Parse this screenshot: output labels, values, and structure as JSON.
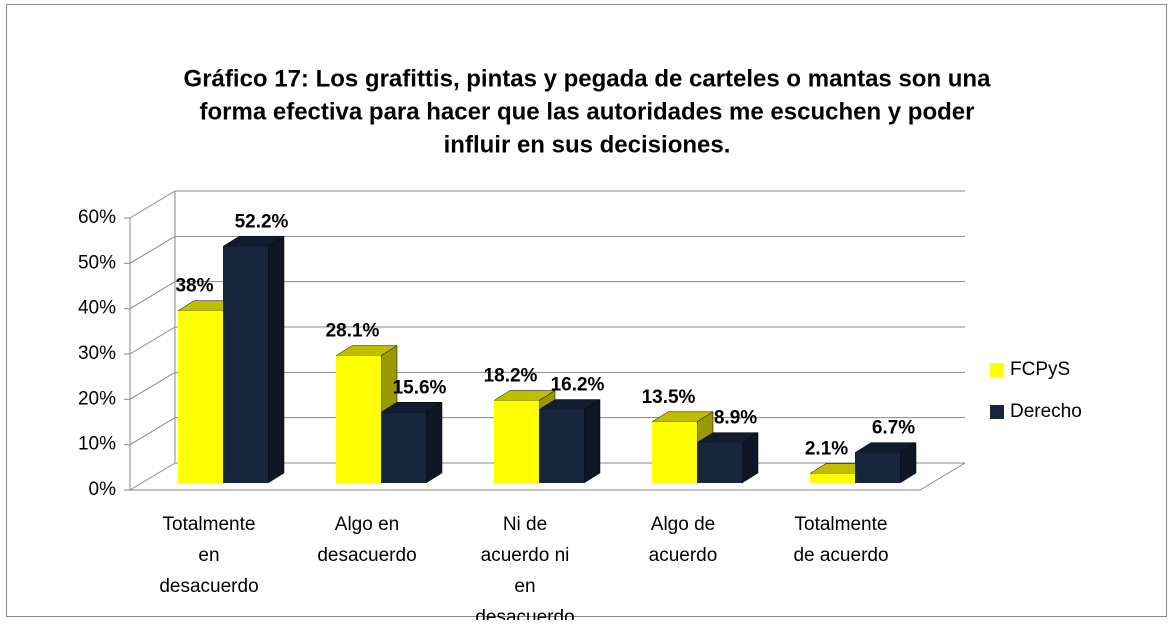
{
  "chart_data": {
    "type": "bar3d",
    "title": [
      "Gráfico 17: Los grafittis, pintas y pegada de carteles o mantas son una",
      "forma efectiva para hacer que las autoridades me escuchen y poder",
      "influir en sus decisiones."
    ],
    "categories": [
      "Totalmente en desacuerdo",
      "Algo en desacuerdo",
      "Ni de acuerdo ni en desacuerdo",
      "Algo de acuerdo",
      "Totalmente de acuerdo"
    ],
    "series": [
      {
        "name": "FCPyS",
        "color": "#ffff00",
        "values": [
          38,
          28.1,
          18.2,
          13.5,
          2.1
        ],
        "value_labels": [
          "38%",
          "28.1%",
          "18.2%",
          "13.5%",
          "2.1%"
        ]
      },
      {
        "name": "Derecho",
        "color": "#17263d",
        "values": [
          52.2,
          15.6,
          16.2,
          8.9,
          6.7
        ],
        "value_labels": [
          "52.2%",
          "15.6%",
          "16.2%",
          "8.9%",
          "6.7%"
        ]
      }
    ],
    "ylim": [
      0,
      60
    ],
    "yticks": [
      {
        "value": 0,
        "label": "0%"
      },
      {
        "value": 10,
        "label": "10%"
      },
      {
        "value": 20,
        "label": "20%"
      },
      {
        "value": 30,
        "label": "30%"
      },
      {
        "value": 40,
        "label": "40%"
      },
      {
        "value": 50,
        "label": "50%"
      },
      {
        "value": 60,
        "label": "60%"
      }
    ],
    "grid": true,
    "legend": "right"
  }
}
